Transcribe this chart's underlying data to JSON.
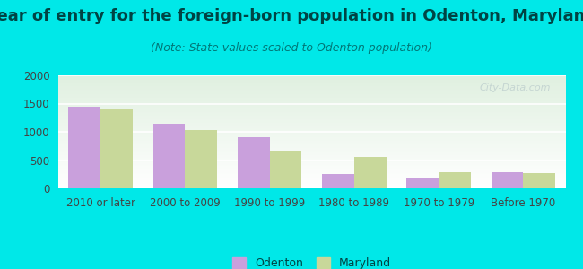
{
  "title": "Year of entry for the foreign-born population in Odenton, Maryland",
  "subtitle": "(Note: State values scaled to Odenton population)",
  "categories": [
    "2010 or later",
    "2000 to 2009",
    "1990 to 1999",
    "1980 to 1989",
    "1970 to 1979",
    "Before 1970"
  ],
  "odenton_values": [
    1440,
    1150,
    910,
    255,
    195,
    290
  ],
  "maryland_values": [
    1390,
    1025,
    670,
    555,
    290,
    265
  ],
  "odenton_color": "#c9a0dc",
  "maryland_color": "#c8d89a",
  "background_outer": "#00e8e8",
  "ylim": [
    0,
    2000
  ],
  "yticks": [
    0,
    500,
    1000,
    1500,
    2000
  ],
  "bar_width": 0.38,
  "title_fontsize": 13,
  "subtitle_fontsize": 9,
  "tick_fontsize": 8.5,
  "legend_fontsize": 9,
  "watermark": "City-Data.com"
}
